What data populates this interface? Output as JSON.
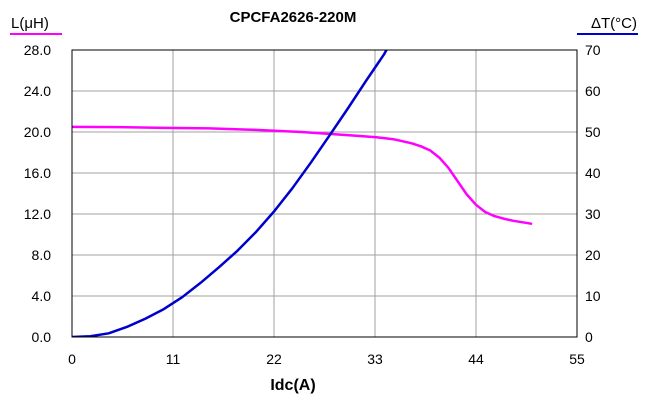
{
  "chart_data": {
    "type": "line",
    "title": "CPCFA2626-220M",
    "xlabel": "Idc(A)",
    "ylabel_left": "L(μH)",
    "ylabel_right": "ΔT(°C)",
    "xlim": [
      0,
      55
    ],
    "ylim_left": [
      0,
      28
    ],
    "ylim_right": [
      0,
      70
    ],
    "x_ticks": [
      0,
      11,
      22,
      33,
      44,
      55
    ],
    "x_tick_labels": [
      "0",
      "11",
      "22",
      "33",
      "44",
      "55"
    ],
    "y_left_ticks": [
      0,
      4,
      8,
      12,
      16,
      20,
      24,
      28
    ],
    "y_left_tick_labels": [
      "0.0",
      "4.0",
      "8.0",
      "12.0",
      "16.0",
      "20.0",
      "24.0",
      "28.0"
    ],
    "y_right_ticks": [
      0,
      10,
      20,
      30,
      40,
      50,
      60,
      70
    ],
    "y_right_tick_labels": [
      "0",
      "10",
      "20",
      "30",
      "40",
      "50",
      "60",
      "70"
    ],
    "grid": true,
    "colors": {
      "inductance": "#ff00ff",
      "temperature": "#0000cc",
      "grid": "#a0a0a0",
      "axis": "#000000"
    },
    "series": [
      {
        "axis": "left",
        "color": "#ff00ff",
        "x": [
          0,
          5,
          10,
          15,
          20,
          25,
          30,
          33,
          35,
          37,
          38,
          39,
          40,
          41,
          42,
          43,
          44,
          45,
          46,
          47,
          48,
          49,
          50
        ],
        "values": [
          20.5,
          20.48,
          20.4,
          20.35,
          20.2,
          20.0,
          19.7,
          19.5,
          19.3,
          18.9,
          18.6,
          18.2,
          17.5,
          16.5,
          15.2,
          13.9,
          12.9,
          12.2,
          11.8,
          11.55,
          11.35,
          11.2,
          11.05
        ]
      },
      {
        "axis": "right",
        "color": "#0000cc",
        "x": [
          0,
          2,
          4,
          6,
          8,
          10,
          12,
          14,
          16,
          18,
          20,
          22,
          24,
          26,
          28,
          30,
          32,
          34,
          34.6
        ],
        "values": [
          0,
          0.2,
          0.9,
          2.5,
          4.5,
          6.8,
          9.7,
          13.2,
          17.0,
          21.0,
          25.5,
          30.6,
          36.3,
          42.5,
          49.0,
          55.6,
          62.4,
          69.0,
          71.5
        ]
      }
    ]
  }
}
